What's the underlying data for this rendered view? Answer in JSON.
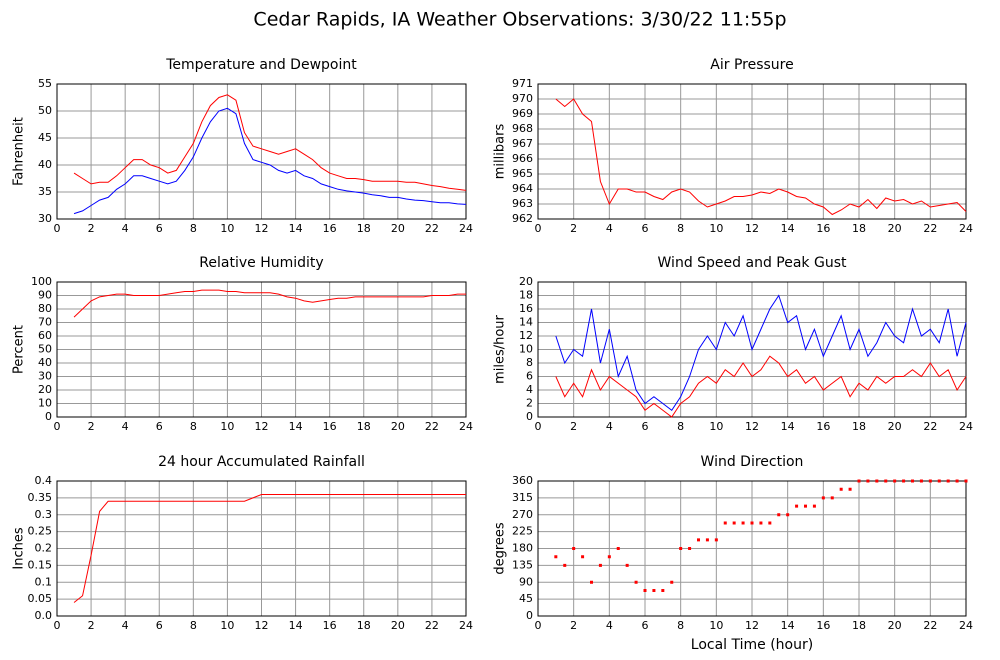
{
  "title": "Cedar Rapids, IA Weather Observations: 3/30/22 11:55p",
  "chart_data": [
    {
      "type": "line",
      "title": "Temperature and Dewpoint",
      "ylabel": "Fahrenheit",
      "x": [
        1,
        1.5,
        2,
        2.5,
        3,
        3.5,
        4,
        4.5,
        5,
        5.5,
        6,
        6.5,
        7,
        7.5,
        8,
        8.5,
        9,
        9.5,
        10,
        10.5,
        11,
        11.5,
        12,
        12.5,
        13,
        13.5,
        14,
        14.5,
        15,
        15.5,
        16,
        16.5,
        17,
        17.5,
        18,
        18.5,
        19,
        19.5,
        20,
        20.5,
        21,
        21.5,
        22,
        22.5,
        23,
        23.5,
        24
      ],
      "series": [
        {
          "color": "#ff0000",
          "values": [
            38.5,
            37.5,
            36.5,
            36.8,
            36.8,
            38,
            39.5,
            41,
            41,
            40,
            39.5,
            38.5,
            39,
            41.5,
            44,
            48,
            51,
            52.5,
            53,
            52,
            46,
            43.5,
            43,
            42.5,
            42,
            42.5,
            43,
            42,
            41,
            39.5,
            38.5,
            38,
            37.5,
            37.5,
            37.3,
            37,
            37,
            37,
            37,
            36.8,
            36.8,
            36.5,
            36.2,
            36,
            35.7,
            35.5,
            35.3
          ]
        },
        {
          "color": "#0000ff",
          "values": [
            31,
            31.5,
            32.5,
            33.5,
            34,
            35.5,
            36.5,
            38,
            38,
            37.5,
            37,
            36.5,
            37,
            39,
            41.5,
            45,
            48,
            50,
            50.5,
            49.5,
            44,
            41,
            40.5,
            40,
            39,
            38.5,
            39,
            38,
            37.5,
            36.5,
            36,
            35.5,
            35.2,
            35,
            34.8,
            34.5,
            34.3,
            34,
            34,
            33.7,
            33.5,
            33.4,
            33.2,
            33,
            33,
            32.8,
            32.7
          ]
        }
      ],
      "xlim": [
        0,
        24
      ],
      "xticks": [
        0,
        2,
        4,
        6,
        8,
        10,
        12,
        14,
        16,
        18,
        20,
        22,
        24
      ],
      "ylim": [
        30,
        55
      ],
      "yticks": [
        30,
        35,
        40,
        45,
        50,
        55
      ],
      "grid": true
    },
    {
      "type": "line",
      "title": "Air Pressure",
      "ylabel": "millibars",
      "x": [
        1,
        1.5,
        2,
        2.5,
        3,
        3.5,
        4,
        4.5,
        5,
        5.5,
        6,
        6.5,
        7,
        7.5,
        8,
        8.5,
        9,
        9.5,
        10,
        10.5,
        11,
        11.5,
        12,
        12.5,
        13,
        13.5,
        14,
        14.5,
        15,
        15.5,
        16,
        16.5,
        17,
        17.5,
        18,
        18.5,
        19,
        19.5,
        20,
        20.5,
        21,
        21.5,
        22,
        22.5,
        23,
        23.5,
        24
      ],
      "series": [
        {
          "color": "#ff0000",
          "values": [
            970,
            969.5,
            970,
            969,
            968.5,
            964.5,
            963,
            964,
            964,
            963.8,
            963.8,
            963.5,
            963.3,
            963.8,
            964,
            963.8,
            963.2,
            962.8,
            963,
            963.2,
            963.5,
            963.5,
            963.6,
            963.8,
            963.7,
            964,
            963.8,
            963.5,
            963.4,
            963,
            962.8,
            962.3,
            962.6,
            963,
            962.8,
            963.3,
            962.7,
            963.4,
            963.2,
            963.3,
            963,
            963.2,
            962.8,
            962.9,
            963,
            963.1,
            962.5
          ]
        }
      ],
      "xlim": [
        0,
        24
      ],
      "xticks": [
        0,
        2,
        4,
        6,
        8,
        10,
        12,
        14,
        16,
        18,
        20,
        22,
        24
      ],
      "ylim": [
        962,
        971
      ],
      "yticks": [
        962,
        963,
        964,
        965,
        966,
        967,
        968,
        969,
        970,
        971
      ],
      "grid": true
    },
    {
      "type": "line",
      "title": "Relative Humidity",
      "ylabel": "Percent",
      "x": [
        1,
        1.5,
        2,
        2.5,
        3,
        3.5,
        4,
        4.5,
        5,
        5.5,
        6,
        6.5,
        7,
        7.5,
        8,
        8.5,
        9,
        9.5,
        10,
        10.5,
        11,
        11.5,
        12,
        12.5,
        13,
        13.5,
        14,
        14.5,
        15,
        15.5,
        16,
        16.5,
        17,
        17.5,
        18,
        18.5,
        19,
        19.5,
        20,
        20.5,
        21,
        21.5,
        22,
        22.5,
        23,
        23.5,
        24
      ],
      "series": [
        {
          "color": "#ff0000",
          "values": [
            74,
            80,
            86,
            89,
            90,
            91,
            91,
            90,
            90,
            90,
            90,
            91,
            92,
            93,
            93,
            94,
            94,
            94,
            93,
            93,
            92,
            92,
            92,
            92,
            91,
            89,
            88,
            86,
            85,
            86,
            87,
            88,
            88,
            89,
            89,
            89,
            89,
            89,
            89,
            89,
            89,
            89,
            90,
            90,
            90,
            91,
            91
          ]
        }
      ],
      "xlim": [
        0,
        24
      ],
      "xticks": [
        0,
        2,
        4,
        6,
        8,
        10,
        12,
        14,
        16,
        18,
        20,
        22,
        24
      ],
      "ylim": [
        0,
        100
      ],
      "yticks": [
        0,
        10,
        20,
        30,
        40,
        50,
        60,
        70,
        80,
        90,
        100
      ],
      "grid": true
    },
    {
      "type": "line",
      "title": "Wind Speed and Peak Gust",
      "ylabel": "miles/hour",
      "x": [
        1,
        1.5,
        2,
        2.5,
        3,
        3.5,
        4,
        4.5,
        5,
        5.5,
        6,
        6.5,
        7,
        7.5,
        8,
        8.5,
        9,
        9.5,
        10,
        10.5,
        11,
        11.5,
        12,
        12.5,
        13,
        13.5,
        14,
        14.5,
        15,
        15.5,
        16,
        16.5,
        17,
        17.5,
        18,
        18.5,
        19,
        19.5,
        20,
        20.5,
        21,
        21.5,
        22,
        22.5,
        23,
        23.5,
        24
      ],
      "series": [
        {
          "color": "#0000ff",
          "values": [
            12,
            8,
            10,
            9,
            16,
            8,
            13,
            6,
            9,
            4,
            2,
            3,
            2,
            1,
            3,
            6,
            10,
            12,
            10,
            14,
            12,
            15,
            10,
            13,
            16,
            18,
            14,
            15,
            10,
            13,
            9,
            12,
            15,
            10,
            13,
            9,
            11,
            14,
            12,
            11,
            16,
            12,
            13,
            11,
            16,
            9,
            14
          ]
        },
        {
          "color": "#ff0000",
          "values": [
            6,
            3,
            5,
            3,
            7,
            4,
            6,
            5,
            4,
            3,
            1,
            2,
            1,
            0,
            2,
            3,
            5,
            6,
            5,
            7,
            6,
            8,
            6,
            7,
            9,
            8,
            6,
            7,
            5,
            6,
            4,
            5,
            6,
            3,
            5,
            4,
            6,
            5,
            6,
            6,
            7,
            6,
            8,
            6,
            7,
            4,
            6
          ]
        }
      ],
      "xlim": [
        0,
        24
      ],
      "xticks": [
        0,
        2,
        4,
        6,
        8,
        10,
        12,
        14,
        16,
        18,
        20,
        22,
        24
      ],
      "ylim": [
        0,
        20
      ],
      "yticks": [
        0,
        2,
        4,
        6,
        8,
        10,
        12,
        14,
        16,
        18,
        20
      ],
      "grid": true
    },
    {
      "type": "line",
      "title": "24 hour Accumulated Rainfall",
      "ylabel": "Inches",
      "x": [
        1,
        1.5,
        2,
        2.5,
        3,
        3.5,
        4,
        4.5,
        5,
        5.5,
        6,
        6.5,
        7,
        7.5,
        8,
        8.5,
        9,
        9.5,
        10,
        10.5,
        11,
        11.5,
        12,
        12.5,
        13,
        13.5,
        14,
        14.5,
        15,
        15.5,
        16,
        16.5,
        17,
        17.5,
        18,
        18.5,
        19,
        19.5,
        20,
        20.5,
        21,
        21.5,
        22,
        22.5,
        23,
        23.5,
        24
      ],
      "series": [
        {
          "color": "#ff0000",
          "values": [
            0.04,
            0.06,
            0.18,
            0.31,
            0.34,
            0.34,
            0.34,
            0.34,
            0.34,
            0.34,
            0.34,
            0.34,
            0.34,
            0.34,
            0.34,
            0.34,
            0.34,
            0.34,
            0.34,
            0.34,
            0.34,
            0.35,
            0.36,
            0.36,
            0.36,
            0.36,
            0.36,
            0.36,
            0.36,
            0.36,
            0.36,
            0.36,
            0.36,
            0.36,
            0.36,
            0.36,
            0.36,
            0.36,
            0.36,
            0.36,
            0.36,
            0.36,
            0.36,
            0.36,
            0.36,
            0.36,
            0.36
          ]
        }
      ],
      "xlim": [
        0,
        24
      ],
      "xticks": [
        0,
        2,
        4,
        6,
        8,
        10,
        12,
        14,
        16,
        18,
        20,
        22,
        24
      ],
      "ylim": [
        0,
        0.4
      ],
      "yticks": [
        {
          "value": 0,
          "label": "0.0"
        },
        0.05,
        0.1,
        0.15,
        0.2,
        0.25,
        0.3,
        0.35,
        0.4
      ],
      "grid": true
    },
    {
      "type": "scatter",
      "title": "Wind Direction",
      "ylabel": "degrees",
      "xlabel": "Local Time (hour)",
      "x": [
        1,
        1.5,
        2,
        2.5,
        3,
        3.5,
        4,
        4.5,
        5,
        5.5,
        6,
        6.5,
        7,
        7.5,
        8,
        8.5,
        9,
        9.5,
        10,
        10.5,
        11,
        11.5,
        12,
        12.5,
        13,
        13.5,
        14,
        14.5,
        15,
        15.5,
        16,
        16.5,
        17,
        17.5,
        18,
        18.5,
        19,
        19.5,
        20,
        20.5,
        21,
        21.5,
        22,
        22.5,
        23,
        23.5,
        24
      ],
      "series": [
        {
          "color": "#ff0000",
          "values": [
            158,
            135,
            180,
            158,
            90,
            135,
            158,
            180,
            135,
            90,
            68,
            68,
            68,
            90,
            180,
            180,
            203,
            203,
            203,
            248,
            248,
            248,
            248,
            248,
            248,
            270,
            270,
            293,
            293,
            293,
            315,
            315,
            338,
            338,
            360,
            360,
            360,
            360,
            360,
            360,
            360,
            360,
            360,
            360,
            360,
            360,
            360
          ]
        }
      ],
      "xlim": [
        0,
        24
      ],
      "xticks": [
        0,
        2,
        4,
        6,
        8,
        10,
        12,
        14,
        16,
        18,
        20,
        22,
        24
      ],
      "ylim": [
        0,
        360
      ],
      "yticks": [
        0,
        45,
        90,
        135,
        180,
        225,
        270,
        315,
        360
      ],
      "grid": true
    }
  ]
}
